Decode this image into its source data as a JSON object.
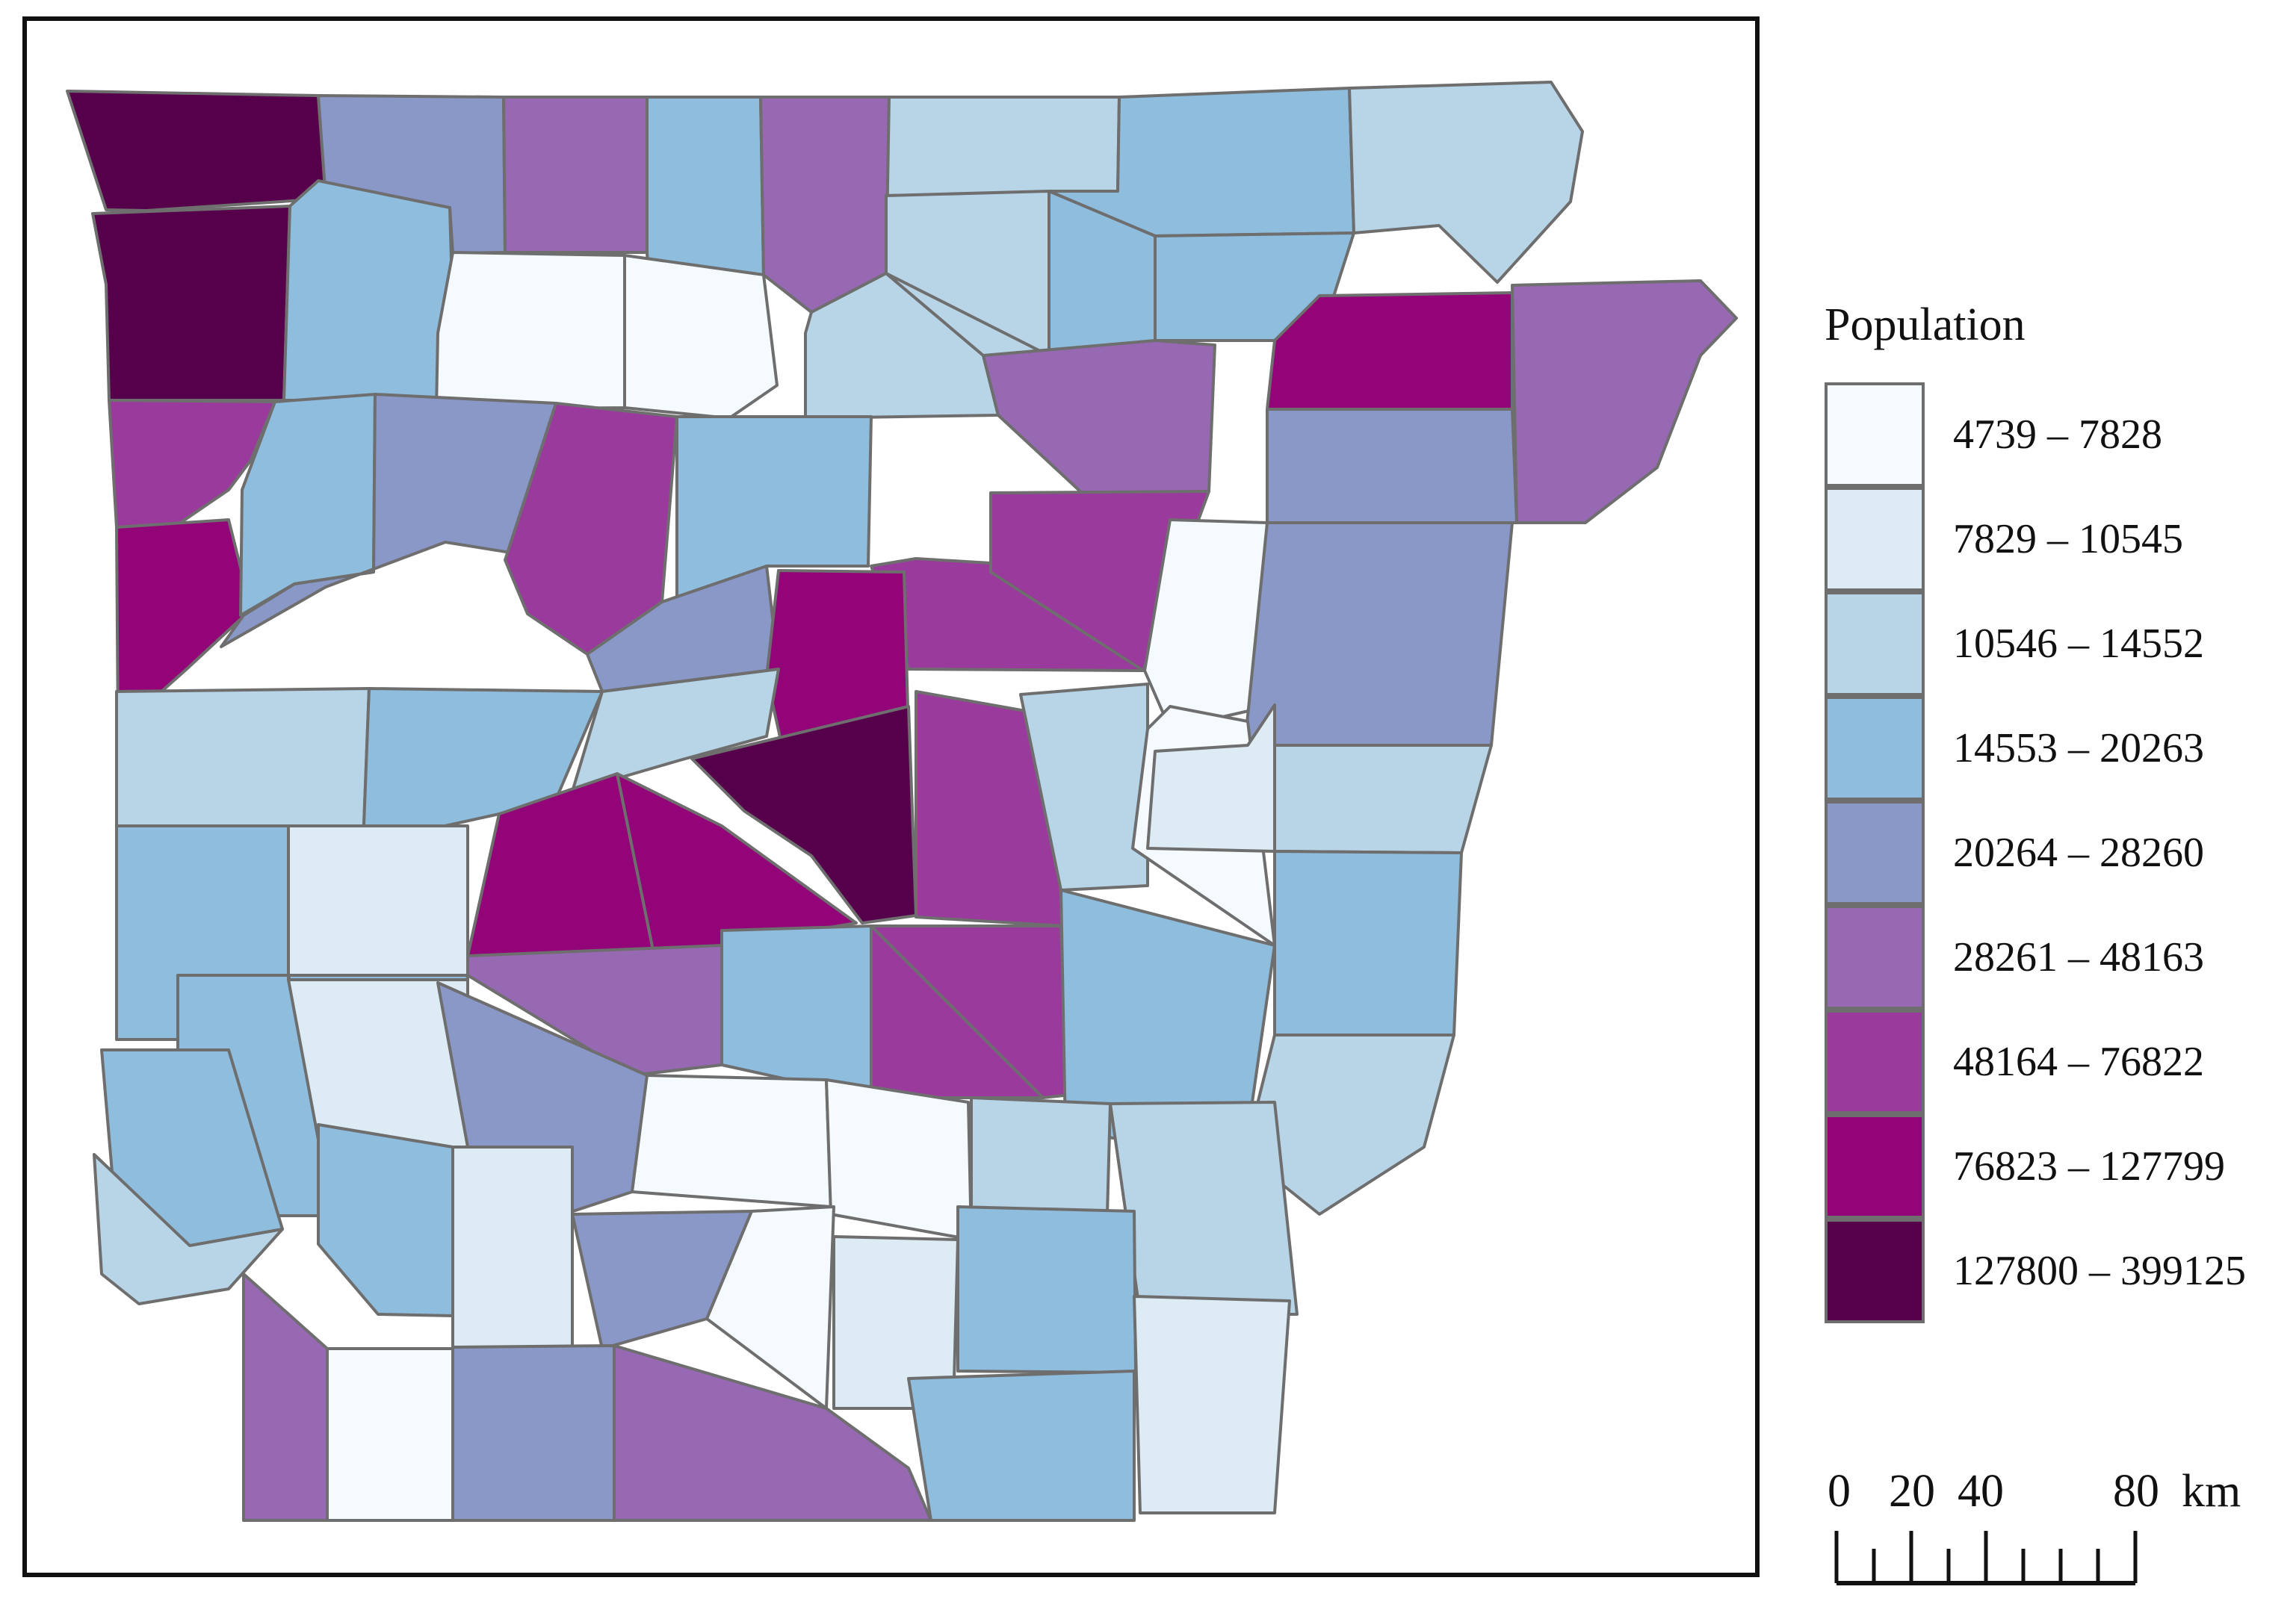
{
  "legend": {
    "title": "Population",
    "classes": [
      {
        "label": "4739 – 7828",
        "color": "#f4fafd"
      },
      {
        "label": "7829 – 10545",
        "color": "#dcebf4"
      },
      {
        "label": "10546 – 14552",
        "color": "#b8d5e8"
      },
      {
        "label": "14553 – 20263",
        "color": "#8fbddd"
      },
      {
        "label": "20264 – 28260",
        "color": "#8a98c8"
      },
      {
        "label": "28261 – 48163",
        "color": "#9669b2"
      },
      {
        "label": "48164 – 76822",
        "color": "#9a3a9c"
      },
      {
        "label": "76823 – 127799",
        "color": "#920478"
      },
      {
        "label": "127800 – 399125",
        "color": "#56004b"
      }
    ]
  },
  "scale_bar": {
    "labels": [
      "0",
      "20",
      "40",
      "80"
    ],
    "unit": "km"
  },
  "colors": {
    "county_border": "#6e6e6e",
    "frame": "#111111"
  }
}
